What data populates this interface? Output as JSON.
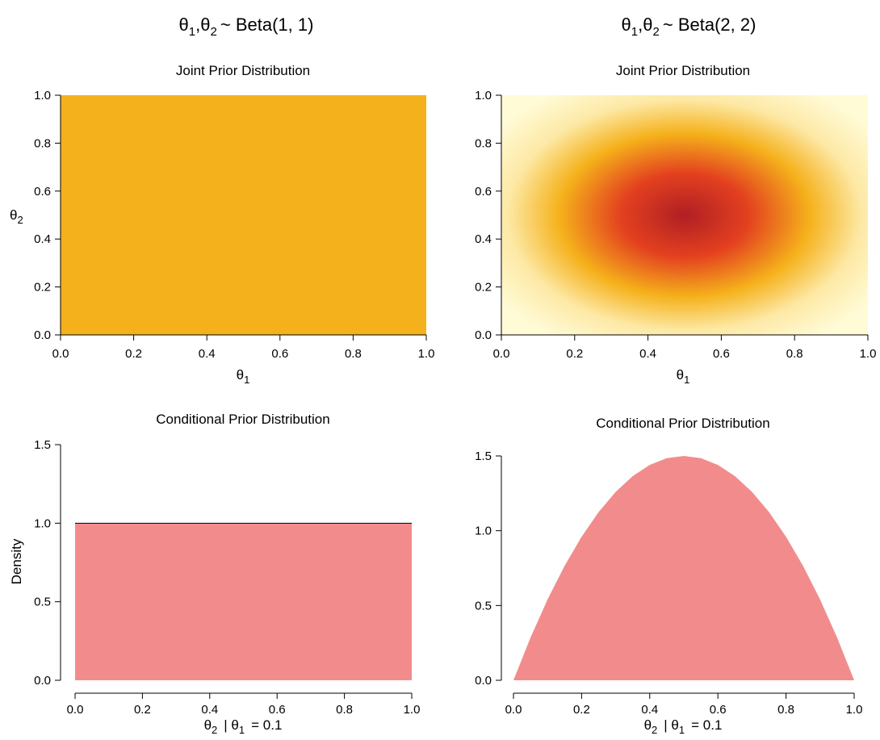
{
  "columns": [
    {
      "theta": "θ",
      "sub1": "1",
      "sub2": "2",
      "dist": "~  Beta(1, 1)"
    },
    {
      "theta": "θ",
      "sub1": "1",
      "sub2": "2",
      "dist": "~  Beta(2, 2)"
    }
  ],
  "colors": {
    "uniform_fill": "#F5B11B",
    "density_fill": "#F28C8C",
    "heat_low": "#FFFBD6",
    "heat_mid": "#F5B11B",
    "heat_high_1": "#E3401F",
    "heat_high_2": "#B01F24"
  },
  "chart_data": [
    {
      "type": "heatmap",
      "title": "Joint Prior Distribution",
      "distribution": "Beta(1, 1) x Beta(1, 1)",
      "alpha": 1,
      "beta": 1,
      "xlabel": {
        "symbol": "θ",
        "sub": "1"
      },
      "ylabel": {
        "symbol": "θ",
        "sub": "2"
      },
      "xlim": [
        0,
        1
      ],
      "ylim": [
        0,
        1
      ],
      "xticks": [
        "0.0",
        "0.2",
        "0.4",
        "0.6",
        "0.8",
        "1.0"
      ],
      "yticks": [
        "0.0",
        "0.2",
        "0.4",
        "0.6",
        "0.8",
        "1.0"
      ],
      "grid": false
    },
    {
      "type": "heatmap",
      "title": "Joint Prior Distribution",
      "distribution": "Beta(2, 2) x Beta(2, 2)",
      "alpha": 2,
      "beta": 2,
      "xlabel": {
        "symbol": "θ",
        "sub": "1"
      },
      "ylabel": {
        "symbol": "",
        "sub": ""
      },
      "xlim": [
        0,
        1
      ],
      "ylim": [
        0,
        1
      ],
      "xticks": [
        "0.0",
        "0.2",
        "0.4",
        "0.6",
        "0.8",
        "1.0"
      ],
      "yticks": [
        "0.0",
        "0.2",
        "0.4",
        "0.6",
        "0.8",
        "1.0"
      ],
      "grid": false
    },
    {
      "type": "area",
      "title": "Conditional Prior Distribution",
      "xlabel": {
        "symbol": "θ",
        "sub": "2",
        "cond": "|  θ",
        "cond_sub": "1",
        "value": "=  0.1"
      },
      "ylabel": "Density",
      "xlim": [
        0,
        1
      ],
      "ylim": [
        0,
        1.5
      ],
      "xticks": [
        "0.0",
        "0.2",
        "0.4",
        "0.6",
        "0.8",
        "1.0"
      ],
      "yticks": [
        "0.0",
        "0.5",
        "1.0",
        "1.5"
      ],
      "x": [
        0,
        0.1,
        0.2,
        0.3,
        0.4,
        0.5,
        0.6,
        0.7,
        0.8,
        0.9,
        1.0
      ],
      "y": [
        1,
        1,
        1,
        1,
        1,
        1,
        1,
        1,
        1,
        1,
        1
      ],
      "grid": false
    },
    {
      "type": "area",
      "title": "Conditional Prior Distribution",
      "xlabel": {
        "symbol": "θ",
        "sub": "2",
        "cond": "|  θ",
        "cond_sub": "1",
        "value": "=  0.1"
      },
      "ylabel": "",
      "xlim": [
        0,
        1
      ],
      "ylim": [
        0,
        1.5
      ],
      "xticks": [
        "0.0",
        "0.2",
        "0.4",
        "0.6",
        "0.8",
        "1.0"
      ],
      "yticks": [
        "0.0",
        "0.5",
        "1.0",
        "1.5"
      ],
      "x": [
        0,
        0.05,
        0.1,
        0.15,
        0.2,
        0.25,
        0.3,
        0.35,
        0.4,
        0.45,
        0.5,
        0.55,
        0.6,
        0.65,
        0.7,
        0.75,
        0.8,
        0.85,
        0.9,
        0.95,
        1.0
      ],
      "y": [
        0,
        0.285,
        0.54,
        0.765,
        0.96,
        1.125,
        1.26,
        1.365,
        1.44,
        1.485,
        1.5,
        1.485,
        1.44,
        1.365,
        1.26,
        1.125,
        0.96,
        0.765,
        0.54,
        0.285,
        0
      ],
      "grid": false
    }
  ]
}
